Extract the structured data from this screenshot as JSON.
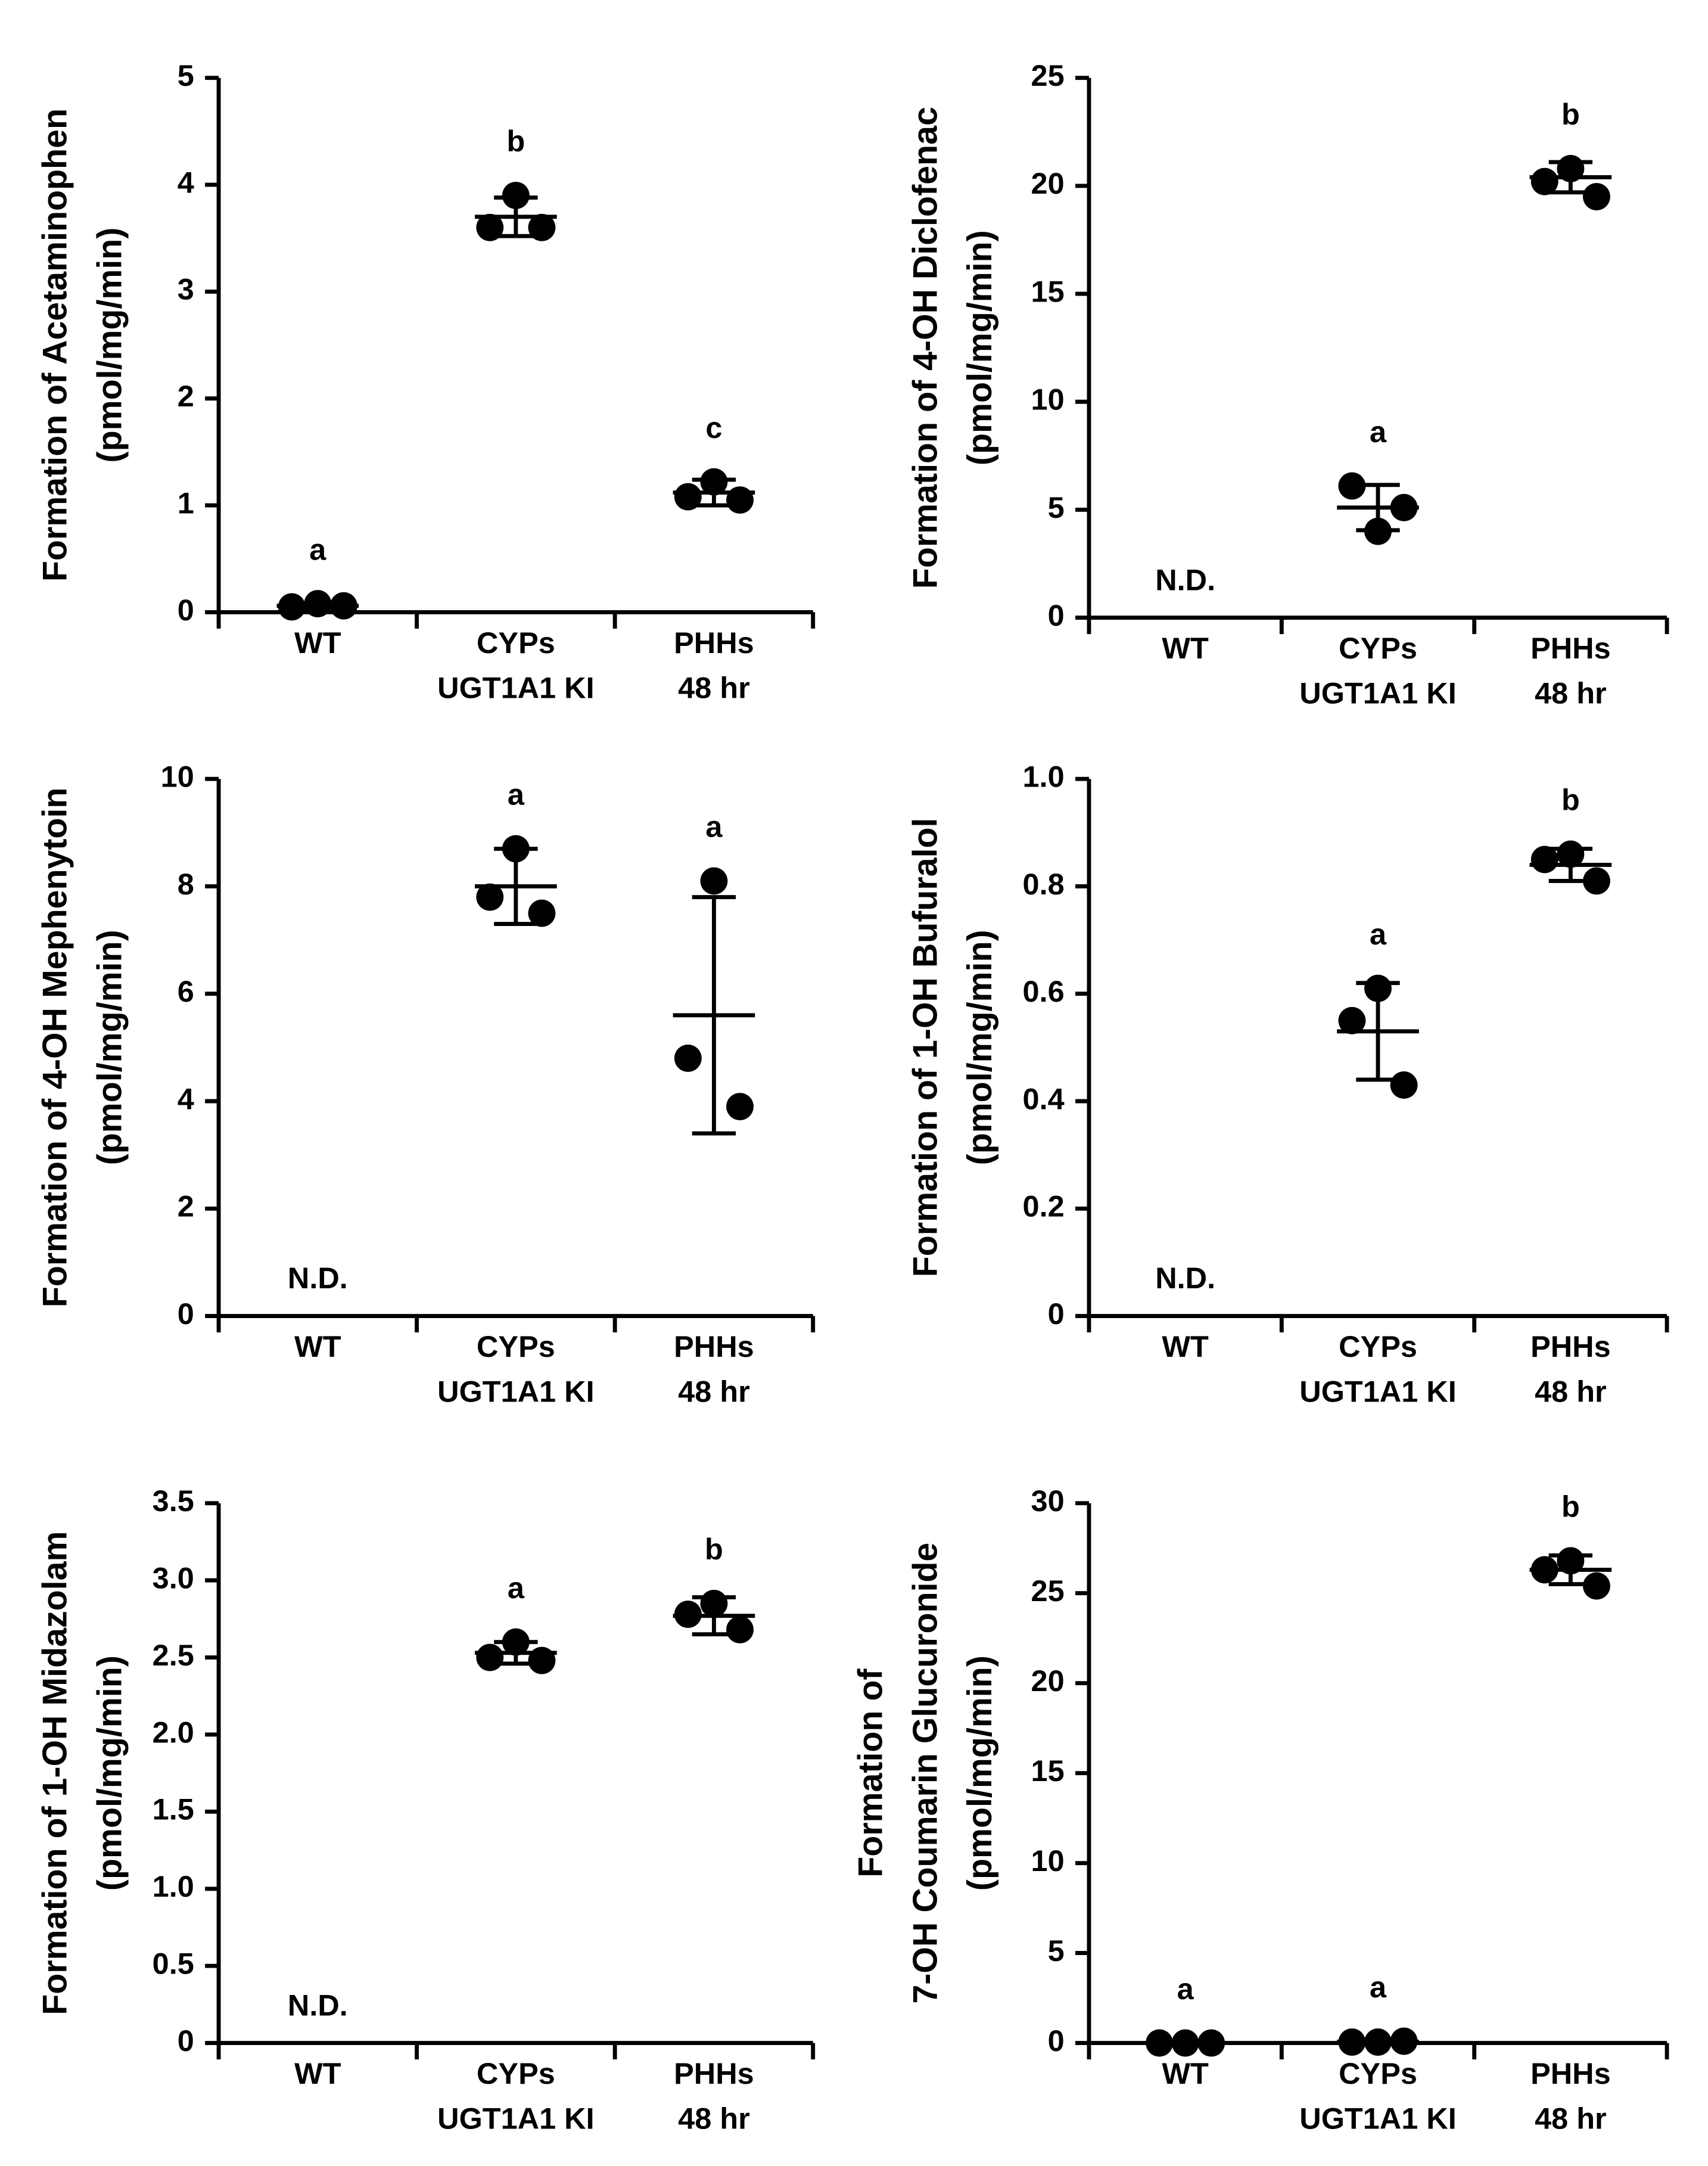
{
  "chart_data": [
    {
      "type": "dot",
      "ylabel": [
        "Formation of Acetaminophen",
        "(pmol/mg/min)"
      ],
      "categories": [
        [
          "WT"
        ],
        [
          "CYPs",
          "UGT1A1 KI"
        ],
        [
          "PHHs",
          "48 hr"
        ]
      ],
      "groups": [
        {
          "points": [
            0.05,
            0.08,
            0.06
          ],
          "mean": 0.06,
          "sd": 0.02,
          "letter": "a"
        },
        {
          "points": [
            3.6,
            3.9,
            3.6
          ],
          "mean": 3.7,
          "sd": 0.18,
          "letter": "b"
        },
        {
          "points": [
            1.08,
            1.22,
            1.05
          ],
          "mean": 1.12,
          "sd": 0.12,
          "letter": "c"
        }
      ],
      "ylim": [
        0,
        5
      ],
      "yticks": [
        0,
        1,
        2,
        3,
        4,
        5
      ],
      "color": "#000000"
    },
    {
      "type": "dot",
      "ylabel": [
        "Formation of 4-OH Diclofenac",
        "(pmol/mg/min)"
      ],
      "categories": [
        [
          "WT"
        ],
        [
          "CYPs",
          "UGT1A1 KI"
        ],
        [
          "PHHs",
          "48 hr"
        ]
      ],
      "groups": [
        {
          "note": "N.D."
        },
        {
          "points": [
            6.1,
            4.0,
            5.1
          ],
          "mean": 5.1,
          "sd": 1.05,
          "letter": "a"
        },
        {
          "points": [
            20.2,
            20.8,
            19.5
          ],
          "mean": 20.4,
          "sd": 0.7,
          "letter": "b"
        }
      ],
      "ylim": [
        0,
        25
      ],
      "yticks": [
        0,
        5,
        10,
        15,
        20,
        25
      ],
      "color": "#000000"
    },
    {
      "type": "dot",
      "ylabel": [
        "Formation of 4-OH Mephenytoin",
        "(pmol/mg/min)"
      ],
      "categories": [
        [
          "WT"
        ],
        [
          "CYPs",
          "UGT1A1 KI"
        ],
        [
          "PHHs",
          "48 hr"
        ]
      ],
      "groups": [
        {
          "note": "N.D."
        },
        {
          "points": [
            7.8,
            8.7,
            7.5
          ],
          "mean": 8.0,
          "sd": 0.7,
          "letter": "a"
        },
        {
          "points": [
            4.8,
            8.1,
            3.9
          ],
          "mean": 5.6,
          "sd": 2.2,
          "letter": "a"
        }
      ],
      "ylim": [
        0,
        10
      ],
      "yticks": [
        0,
        2,
        4,
        6,
        8,
        10
      ],
      "color": "#000000"
    },
    {
      "type": "dot",
      "ylabel": [
        "Formation of 1-OH Bufuralol",
        "(pmol/mg/min)"
      ],
      "categories": [
        [
          "WT"
        ],
        [
          "CYPs",
          "UGT1A1 KI"
        ],
        [
          "PHHs",
          "48 hr"
        ]
      ],
      "groups": [
        {
          "note": "N.D."
        },
        {
          "points": [
            0.55,
            0.61,
            0.43
          ],
          "mean": 0.53,
          "sd": 0.09,
          "letter": "a"
        },
        {
          "points": [
            0.85,
            0.86,
            0.81
          ],
          "mean": 0.84,
          "sd": 0.03,
          "letter": "b"
        }
      ],
      "ylim": [
        0,
        1
      ],
      "yticks": [
        0,
        0.2,
        0.4,
        0.6,
        0.8,
        {
          "value": 1,
          "label": "1.0"
        }
      ],
      "color": "#000000"
    },
    {
      "type": "dot",
      "ylabel": [
        "Formation of 1-OH Midazolam",
        "(pmol/mg/min)"
      ],
      "categories": [
        [
          "WT"
        ],
        [
          "CYPs",
          "UGT1A1 KI"
        ],
        [
          "PHHs",
          "48 hr"
        ]
      ],
      "groups": [
        {
          "note": "N.D."
        },
        {
          "points": [
            2.5,
            2.6,
            2.48
          ],
          "mean": 2.53,
          "sd": 0.07,
          "letter": "a"
        },
        {
          "points": [
            2.78,
            2.85,
            2.68
          ],
          "mean": 2.77,
          "sd": 0.12,
          "letter": "b"
        }
      ],
      "ylim": [
        0,
        3.5
      ],
      "yticks": [
        0,
        0.5,
        {
          "value": 1,
          "label": "1.0"
        },
        1.5,
        {
          "value": 2,
          "label": "2.0"
        },
        2.5,
        {
          "value": 3,
          "label": "3.0"
        },
        3.5
      ],
      "color": "#000000"
    },
    {
      "type": "dot",
      "ylabel": [
        "Formation of",
        "7-OH Coumarin Glucuronide",
        "(pmol/mg/min)"
      ],
      "categories": [
        [
          "WT"
        ],
        [
          "CYPs",
          "UGT1A1 KI"
        ],
        [
          "PHHs",
          "48 hr"
        ]
      ],
      "groups": [
        {
          "points": [
            0,
            0,
            0
          ],
          "mean": 0,
          "sd": 0,
          "letter": "a"
        },
        {
          "points": [
            0.05,
            0.05,
            0.1
          ],
          "mean": 0.07,
          "sd": 0.03,
          "letter": "a"
        },
        {
          "points": [
            26.3,
            26.8,
            25.4
          ],
          "mean": 26.3,
          "sd": 0.8,
          "letter": "b"
        }
      ],
      "ylim": [
        0,
        30
      ],
      "yticks": [
        0,
        5,
        10,
        15,
        20,
        25,
        30
      ],
      "color": "#000000"
    }
  ]
}
